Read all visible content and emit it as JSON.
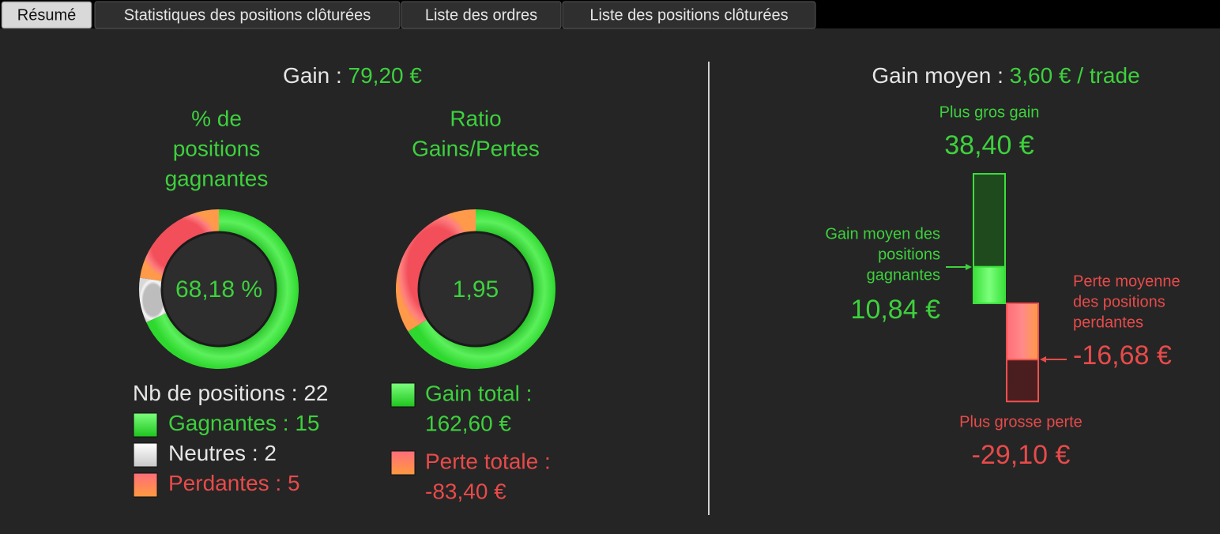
{
  "tabs": [
    "Résumé",
    "Statistiques des positions clôturées",
    "Liste des ordres",
    "Liste des positions clôturées"
  ],
  "gain": {
    "label": "Gain :",
    "value": "79,20 €"
  },
  "win_rate": {
    "title": [
      "% de",
      "positions",
      "gagnantes"
    ],
    "center": "68,18 %"
  },
  "positions": {
    "label": "Nb de positions :",
    "total": 22,
    "items": [
      {
        "label": "Gagnantes :",
        "value": 15
      },
      {
        "label": "Neutres :",
        "value": 2
      },
      {
        "label": "Perdantes :",
        "value": 5
      }
    ]
  },
  "ratio": {
    "title": [
      "Ratio",
      "Gains/Pertes"
    ],
    "center": "1,95",
    "items": [
      {
        "label": "Gain total :",
        "value": 162.6,
        "value_label": "162,60 €"
      },
      {
        "label": "Perte totale :",
        "value": -83.4,
        "value_label": "-83,40 €"
      }
    ]
  },
  "average": {
    "label": "Gain moyen :",
    "value": "3,60 € / trade"
  },
  "extremes": {
    "max_gain": {
      "label": "Plus gros gain",
      "value": 38.4,
      "value_label": "38,40 €"
    },
    "avg_win": {
      "label": [
        "Gain moyen des",
        "positions",
        "gagnantes"
      ],
      "value": 10.84,
      "value_label": "10,84 €"
    },
    "avg_loss": {
      "label": [
        "Perte moyenne",
        "des positions",
        "perdantes"
      ],
      "value": -16.68,
      "value_label": "-16,68 €"
    },
    "max_loss": {
      "label": "Plus grosse perte",
      "value": -29.1,
      "value_label": "-29,10 €"
    }
  }
}
